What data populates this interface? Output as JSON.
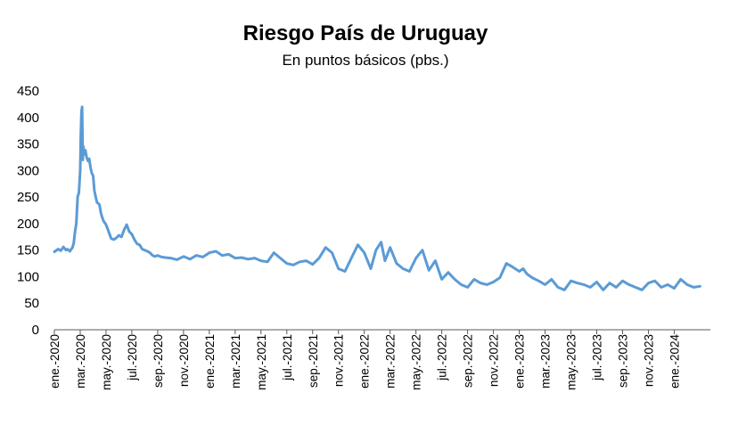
{
  "chart_data": {
    "type": "line",
    "title": "Riesgo País de Uruguay",
    "subtitle": "En puntos básicos (pbs.)",
    "xlabel": "",
    "ylabel": "",
    "ylim": [
      0,
      450
    ],
    "yticks": [
      0,
      50,
      100,
      150,
      200,
      250,
      300,
      350,
      400,
      450
    ],
    "ytick_labels": [
      "0",
      "50",
      "100",
      "150",
      "200",
      "250",
      "300",
      "350",
      "400",
      "450"
    ],
    "grid": false,
    "legend": "none",
    "xtick_labels": [
      "ene.-2020",
      "mar.-2020",
      "may.-2020",
      "jul.-2020",
      "sep.-2020",
      "nov.-2020",
      "ene.-2021",
      "mar.-2021",
      "may.-2021",
      "jul.-2021",
      "sep.-2021",
      "nov.-2021",
      "ene.-2022",
      "mar.-2022",
      "may.-2022",
      "jul.-2022",
      "sep.-2022",
      "nov.-2022",
      "ene.-2023",
      "mar.-2023",
      "may.-2023",
      "jul.-2023",
      "sep.-2023",
      "nov.-2023",
      "ene.-2024"
    ],
    "series": [
      {
        "color": "#5B9BD5",
        "x_month_index": [
          0.0,
          0.3,
          0.5,
          0.7,
          0.9,
          1.0,
          1.2,
          1.4,
          1.5,
          1.6,
          1.7,
          1.8,
          1.9,
          2.0,
          2.05,
          2.1,
          2.15,
          2.2,
          2.25,
          2.3,
          2.4,
          2.5,
          2.6,
          2.7,
          2.8,
          2.9,
          3.0,
          3.1,
          3.2,
          3.3,
          3.4,
          3.5,
          3.6,
          3.7,
          3.8,
          4.0,
          4.2,
          4.4,
          4.6,
          4.8,
          5.0,
          5.2,
          5.4,
          5.6,
          5.8,
          6.0,
          6.2,
          6.4,
          6.6,
          6.8,
          7.0,
          7.2,
          7.4,
          7.6,
          7.8,
          8.0,
          8.3,
          8.6,
          9.0,
          9.5,
          10.0,
          10.5,
          11.0,
          11.5,
          12.0,
          12.5,
          13.0,
          13.5,
          14.0,
          14.5,
          15.0,
          15.5,
          16.0,
          16.5,
          17.0,
          17.5,
          18.0,
          18.5,
          19.0,
          19.5,
          20.0,
          20.5,
          21.0,
          21.5,
          22.0,
          22.5,
          23.0,
          23.5,
          24.0,
          24.5,
          24.9,
          25.3,
          25.6,
          26.0,
          26.5,
          27.0,
          27.5,
          28.0,
          28.5,
          29.0,
          29.5,
          30.0,
          30.5,
          31.0,
          31.5,
          32.0,
          32.5,
          33.0,
          33.5,
          34.0,
          34.5,
          35.0,
          35.5,
          36.0,
          36.3,
          36.6,
          37.0,
          37.5,
          38.0,
          38.5,
          39.0,
          39.5,
          40.0,
          40.5,
          41.0,
          41.5,
          42.0,
          42.5,
          43.0,
          43.5,
          44.0,
          44.5,
          45.0,
          45.5,
          46.0,
          46.5,
          47.0,
          47.5,
          48.0,
          48.5,
          49.0,
          49.5,
          50.0
        ],
        "values": [
          147,
          152,
          149,
          156,
          150,
          152,
          148,
          155,
          163,
          185,
          200,
          250,
          258,
          300,
          370,
          410,
          420,
          320,
          345,
          330,
          338,
          325,
          318,
          322,
          305,
          295,
          290,
          262,
          250,
          240,
          238,
          235,
          220,
          212,
          205,
          198,
          185,
          172,
          170,
          173,
          178,
          175,
          188,
          198,
          185,
          180,
          170,
          162,
          160,
          152,
          150,
          148,
          145,
          140,
          138,
          140,
          137,
          136,
          135,
          132,
          138,
          133,
          140,
          137,
          145,
          148,
          140,
          142,
          135,
          136,
          133,
          135,
          130,
          128,
          145,
          135,
          125,
          122,
          128,
          130,
          123,
          135,
          155,
          145,
          115,
          110,
          135,
          160,
          145,
          115,
          150,
          165,
          130,
          155,
          125,
          115,
          110,
          135,
          150,
          112,
          130,
          95,
          108,
          95,
          85,
          80,
          95,
          88,
          85,
          90,
          98,
          125,
          118,
          110,
          115,
          105,
          98,
          92,
          85,
          95,
          80,
          75,
          92,
          88,
          85,
          80,
          90,
          75,
          88,
          80,
          92,
          85,
          80,
          75,
          88,
          92,
          80,
          85,
          78,
          95,
          85,
          80,
          82
        ]
      }
    ]
  }
}
